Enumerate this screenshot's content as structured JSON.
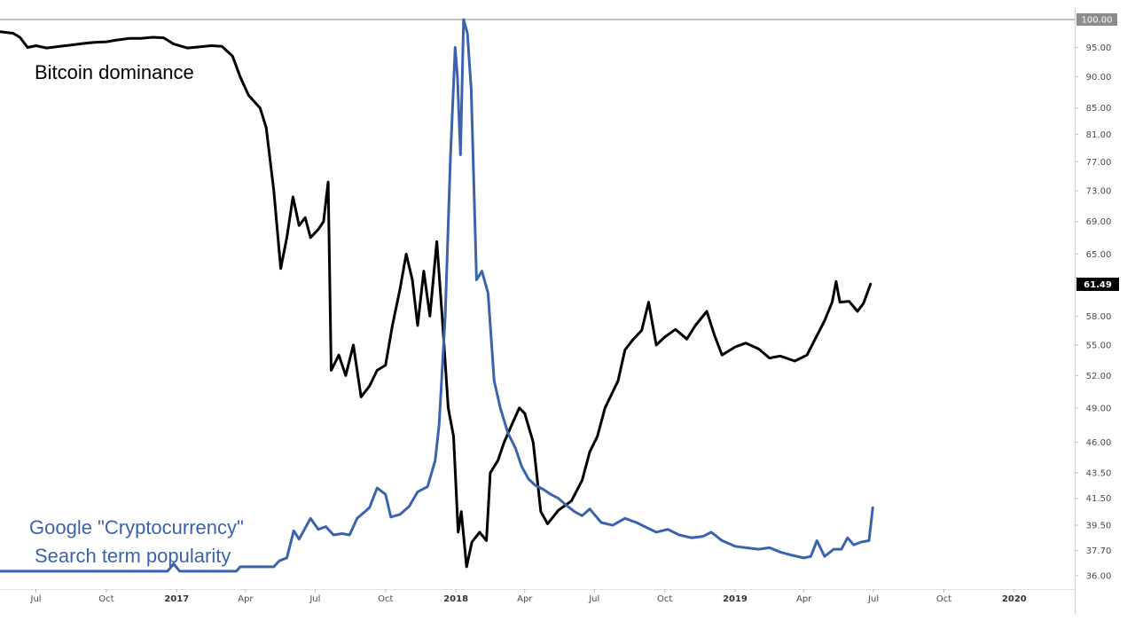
{
  "chart_data": {
    "type": "line",
    "title": "",
    "xlabel": "",
    "ylabel": "",
    "y_scale": "log",
    "ylim": [
      36,
      100
    ],
    "xlim": [
      "2016-05-15",
      "2020-03-20"
    ],
    "grid": false,
    "x_ticks": [
      {
        "label": "Jul",
        "date": "2016-07-01",
        "year": false
      },
      {
        "label": "Oct",
        "date": "2016-10-01",
        "year": false
      },
      {
        "label": "2017",
        "date": "2017-01-01",
        "year": true
      },
      {
        "label": "Apr",
        "date": "2017-04-01",
        "year": false
      },
      {
        "label": "Jul",
        "date": "2017-07-01",
        "year": false
      },
      {
        "label": "Oct",
        "date": "2017-10-01",
        "year": false
      },
      {
        "label": "2018",
        "date": "2018-01-01",
        "year": true
      },
      {
        "label": "Apr",
        "date": "2018-04-01",
        "year": false
      },
      {
        "label": "Jul",
        "date": "2018-07-01",
        "year": false
      },
      {
        "label": "Oct",
        "date": "2018-10-01",
        "year": false
      },
      {
        "label": "2019",
        "date": "2019-01-01",
        "year": true
      },
      {
        "label": "Apr",
        "date": "2019-04-01",
        "year": false
      },
      {
        "label": "Jul",
        "date": "2019-07-01",
        "year": false
      },
      {
        "label": "Oct",
        "date": "2019-10-01",
        "year": false
      },
      {
        "label": "2020",
        "date": "2020-01-01",
        "year": true
      }
    ],
    "y_ticks": [
      "100.00",
      "95.00",
      "90.00",
      "85.00",
      "81.00",
      "77.00",
      "73.00",
      "69.00",
      "65.00",
      "61.49",
      "58.00",
      "55.00",
      "52.00",
      "49.00",
      "46.00",
      "43.50",
      "41.50",
      "39.50",
      "37.70",
      "36.00"
    ],
    "current_value": "61.49",
    "top_value": "100.00",
    "annotations": {
      "dominance": "Bitcoin dominance",
      "google_line1": "Google \"Cryptocurrency\"",
      "google_line2": "Search term popularity"
    },
    "series": [
      {
        "color": "#000000",
        "values": [
          [
            "2016-05-15",
            97.8
          ],
          [
            "2016-06-01",
            97.5
          ],
          [
            "2016-06-10",
            96.8
          ],
          [
            "2016-06-20",
            95.0
          ],
          [
            "2016-07-01",
            95.3
          ],
          [
            "2016-07-15",
            94.9
          ],
          [
            "2016-08-01",
            95.2
          ],
          [
            "2016-08-15",
            95.4
          ],
          [
            "2016-09-01",
            95.7
          ],
          [
            "2016-09-15",
            95.9
          ],
          [
            "2016-10-01",
            96.0
          ],
          [
            "2016-10-15",
            96.3
          ],
          [
            "2016-11-01",
            96.6
          ],
          [
            "2016-11-15",
            96.6
          ],
          [
            "2016-12-01",
            96.8
          ],
          [
            "2016-12-15",
            96.7
          ],
          [
            "2016-12-28",
            95.6
          ],
          [
            "2017-01-15",
            94.9
          ],
          [
            "2017-02-01",
            95.1
          ],
          [
            "2017-02-15",
            95.3
          ],
          [
            "2017-03-01",
            95.2
          ],
          [
            "2017-03-15",
            93.5
          ],
          [
            "2017-03-25",
            90.0
          ],
          [
            "2017-04-05",
            87.0
          ],
          [
            "2017-04-20",
            85.0
          ],
          [
            "2017-04-28",
            82.0
          ],
          [
            "2017-05-08",
            73.0
          ],
          [
            "2017-05-17",
            63.3
          ],
          [
            "2017-05-25",
            67.0
          ],
          [
            "2017-06-02",
            72.2
          ],
          [
            "2017-06-10",
            68.5
          ],
          [
            "2017-06-18",
            69.5
          ],
          [
            "2017-06-25",
            67.0
          ],
          [
            "2017-07-05",
            68.0
          ],
          [
            "2017-07-12",
            69.0
          ],
          [
            "2017-07-18",
            74.2
          ],
          [
            "2017-07-22",
            52.5
          ],
          [
            "2017-08-01",
            54.0
          ],
          [
            "2017-08-10",
            52.0
          ],
          [
            "2017-08-20",
            55.0
          ],
          [
            "2017-08-30",
            50.0
          ],
          [
            "2017-09-10",
            51.0
          ],
          [
            "2017-09-20",
            52.5
          ],
          [
            "2017-10-01",
            53.0
          ],
          [
            "2017-10-10",
            57.0
          ],
          [
            "2017-10-20",
            61.0
          ],
          [
            "2017-10-28",
            65.0
          ],
          [
            "2017-11-05",
            62.0
          ],
          [
            "2017-11-12",
            57.0
          ],
          [
            "2017-11-20",
            63.0
          ],
          [
            "2017-11-28",
            58.0
          ],
          [
            "2017-12-07",
            66.5
          ],
          [
            "2017-12-14",
            58.0
          ],
          [
            "2017-12-22",
            49.0
          ],
          [
            "2017-12-29",
            46.5
          ],
          [
            "2018-01-04",
            39.0
          ],
          [
            "2018-01-08",
            40.5
          ],
          [
            "2018-01-15",
            36.6
          ],
          [
            "2018-01-22",
            38.3
          ],
          [
            "2018-02-01",
            39.0
          ],
          [
            "2018-02-10",
            38.4
          ],
          [
            "2018-02-15",
            43.5
          ],
          [
            "2018-02-25",
            44.5
          ],
          [
            "2018-03-05",
            46.0
          ],
          [
            "2018-03-15",
            47.5
          ],
          [
            "2018-03-25",
            49.0
          ],
          [
            "2018-04-01",
            48.5
          ],
          [
            "2018-04-12",
            46.0
          ],
          [
            "2018-04-22",
            40.5
          ],
          [
            "2018-05-01",
            39.6
          ],
          [
            "2018-05-15",
            40.6
          ],
          [
            "2018-06-01",
            41.3
          ],
          [
            "2018-06-15",
            42.9
          ],
          [
            "2018-06-25",
            45.2
          ],
          [
            "2018-07-05",
            46.5
          ],
          [
            "2018-07-15",
            49.0
          ],
          [
            "2018-08-01",
            51.5
          ],
          [
            "2018-08-10",
            54.5
          ],
          [
            "2018-08-20",
            55.5
          ],
          [
            "2018-09-01",
            56.5
          ],
          [
            "2018-09-10",
            59.5
          ],
          [
            "2018-09-20",
            55.0
          ],
          [
            "2018-10-01",
            55.8
          ],
          [
            "2018-10-15",
            56.6
          ],
          [
            "2018-10-30",
            55.6
          ],
          [
            "2018-11-10",
            57.0
          ],
          [
            "2018-11-25",
            58.5
          ],
          [
            "2018-12-05",
            56.0
          ],
          [
            "2018-12-15",
            54.0
          ],
          [
            "2019-01-01",
            54.8
          ],
          [
            "2019-01-15",
            55.2
          ],
          [
            "2019-02-01",
            54.6
          ],
          [
            "2019-02-15",
            53.7
          ],
          [
            "2019-03-01",
            53.9
          ],
          [
            "2019-03-20",
            53.4
          ],
          [
            "2019-04-05",
            54.0
          ],
          [
            "2019-04-15",
            55.5
          ],
          [
            "2019-04-28",
            57.5
          ],
          [
            "2019-05-08",
            59.5
          ],
          [
            "2019-05-13",
            61.8
          ],
          [
            "2019-05-18",
            59.5
          ],
          [
            "2019-05-30",
            59.6
          ],
          [
            "2019-06-10",
            58.5
          ],
          [
            "2019-06-18",
            59.4
          ],
          [
            "2019-06-27",
            61.5
          ]
        ]
      },
      {
        "color": "#3b63ad",
        "values": [
          [
            "2016-05-15",
            36.3
          ],
          [
            "2016-12-20",
            36.3
          ],
          [
            "2016-12-28",
            36.8
          ],
          [
            "2017-01-05",
            36.3
          ],
          [
            "2017-03-20",
            36.3
          ],
          [
            "2017-03-25",
            36.6
          ],
          [
            "2017-05-08",
            36.6
          ],
          [
            "2017-05-15",
            37.0
          ],
          [
            "2017-05-25",
            37.2
          ],
          [
            "2017-06-03",
            39.1
          ],
          [
            "2017-06-10",
            38.5
          ],
          [
            "2017-06-25",
            40.0
          ],
          [
            "2017-07-05",
            39.2
          ],
          [
            "2017-07-15",
            39.4
          ],
          [
            "2017-07-25",
            38.8
          ],
          [
            "2017-08-05",
            38.9
          ],
          [
            "2017-08-15",
            38.8
          ],
          [
            "2017-08-25",
            40.0
          ],
          [
            "2017-09-10",
            40.8
          ],
          [
            "2017-09-20",
            42.3
          ],
          [
            "2017-10-01",
            41.8
          ],
          [
            "2017-10-08",
            40.1
          ],
          [
            "2017-10-20",
            40.3
          ],
          [
            "2017-11-01",
            40.9
          ],
          [
            "2017-11-12",
            42.0
          ],
          [
            "2017-11-25",
            42.4
          ],
          [
            "2017-12-05",
            44.5
          ],
          [
            "2017-12-10",
            47.5
          ],
          [
            "2017-12-18",
            58.0
          ],
          [
            "2017-12-25",
            78.0
          ],
          [
            "2017-12-31",
            95.0
          ],
          [
            "2018-01-03",
            90.0
          ],
          [
            "2018-01-07",
            78.0
          ],
          [
            "2018-01-11",
            100.0
          ],
          [
            "2018-01-16",
            97.5
          ],
          [
            "2018-01-21",
            88.0
          ],
          [
            "2018-01-28",
            62.0
          ],
          [
            "2018-02-04",
            63.0
          ],
          [
            "2018-02-12",
            60.5
          ],
          [
            "2018-02-20",
            51.5
          ],
          [
            "2018-02-28",
            49.0
          ],
          [
            "2018-03-10",
            46.8
          ],
          [
            "2018-03-20",
            45.5
          ],
          [
            "2018-03-28",
            44.0
          ],
          [
            "2018-04-06",
            43.0
          ],
          [
            "2018-04-15",
            42.5
          ],
          [
            "2018-04-25",
            42.2
          ],
          [
            "2018-05-05",
            41.8
          ],
          [
            "2018-05-15",
            41.5
          ],
          [
            "2018-05-25",
            41.0
          ],
          [
            "2018-06-05",
            40.5
          ],
          [
            "2018-06-15",
            40.2
          ],
          [
            "2018-06-25",
            40.7
          ],
          [
            "2018-07-10",
            39.7
          ],
          [
            "2018-07-25",
            39.5
          ],
          [
            "2018-08-10",
            40.0
          ],
          [
            "2018-08-25",
            39.7
          ],
          [
            "2018-09-05",
            39.4
          ],
          [
            "2018-09-20",
            39.0
          ],
          [
            "2018-10-05",
            39.2
          ],
          [
            "2018-10-20",
            38.8
          ],
          [
            "2018-11-05",
            38.6
          ],
          [
            "2018-11-20",
            38.7
          ],
          [
            "2018-12-01",
            39.0
          ],
          [
            "2018-12-15",
            38.4
          ],
          [
            "2019-01-01",
            38.0
          ],
          [
            "2019-01-15",
            37.9
          ],
          [
            "2019-02-01",
            37.8
          ],
          [
            "2019-02-15",
            37.9
          ],
          [
            "2019-03-01",
            37.6
          ],
          [
            "2019-03-15",
            37.4
          ],
          [
            "2019-04-01",
            37.2
          ],
          [
            "2019-04-10",
            37.3
          ],
          [
            "2019-04-18",
            38.4
          ],
          [
            "2019-04-28",
            37.3
          ],
          [
            "2019-05-10",
            37.8
          ],
          [
            "2019-05-20",
            37.8
          ],
          [
            "2019-05-28",
            38.6
          ],
          [
            "2019-06-05",
            38.1
          ],
          [
            "2019-06-15",
            38.3
          ],
          [
            "2019-06-25",
            38.4
          ],
          [
            "2019-06-30",
            40.8
          ]
        ]
      }
    ]
  }
}
